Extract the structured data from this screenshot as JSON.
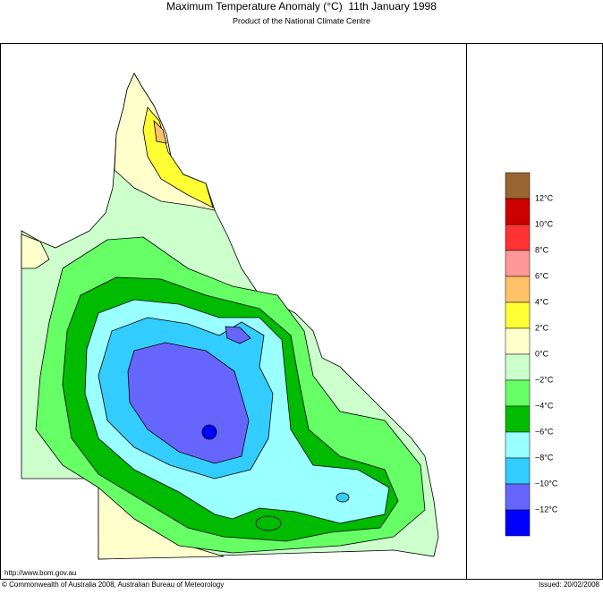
{
  "header": {
    "title": "Maximum Temperature Anomaly (°C)  11th January 1998",
    "subtitle": "Product of the National Climate Centre"
  },
  "legend": {
    "colors": [
      "#996633",
      "#cc0000",
      "#ff3333",
      "#ff9999",
      "#ffc266",
      "#ffff33",
      "#ffffcc",
      "#ccffcc",
      "#66ff66",
      "#00bb00",
      "#99ffff",
      "#33ccff",
      "#6666ff",
      "#0000ff"
    ],
    "labels": [
      "12°C",
      "10°C",
      "8°C",
      "6°C",
      "4°C",
      "2°C",
      "0°C",
      "−2°C",
      "−4°C",
      "−6°C",
      "−8°C",
      "−10°C",
      "−12°C"
    ]
  },
  "footer": {
    "url": "http://www.bom.gov.au",
    "copyright": "© Commonwealth of Australia 2008, Australian Bureau of Meteorology",
    "issued": "Issued: 20/02/2008"
  }
}
